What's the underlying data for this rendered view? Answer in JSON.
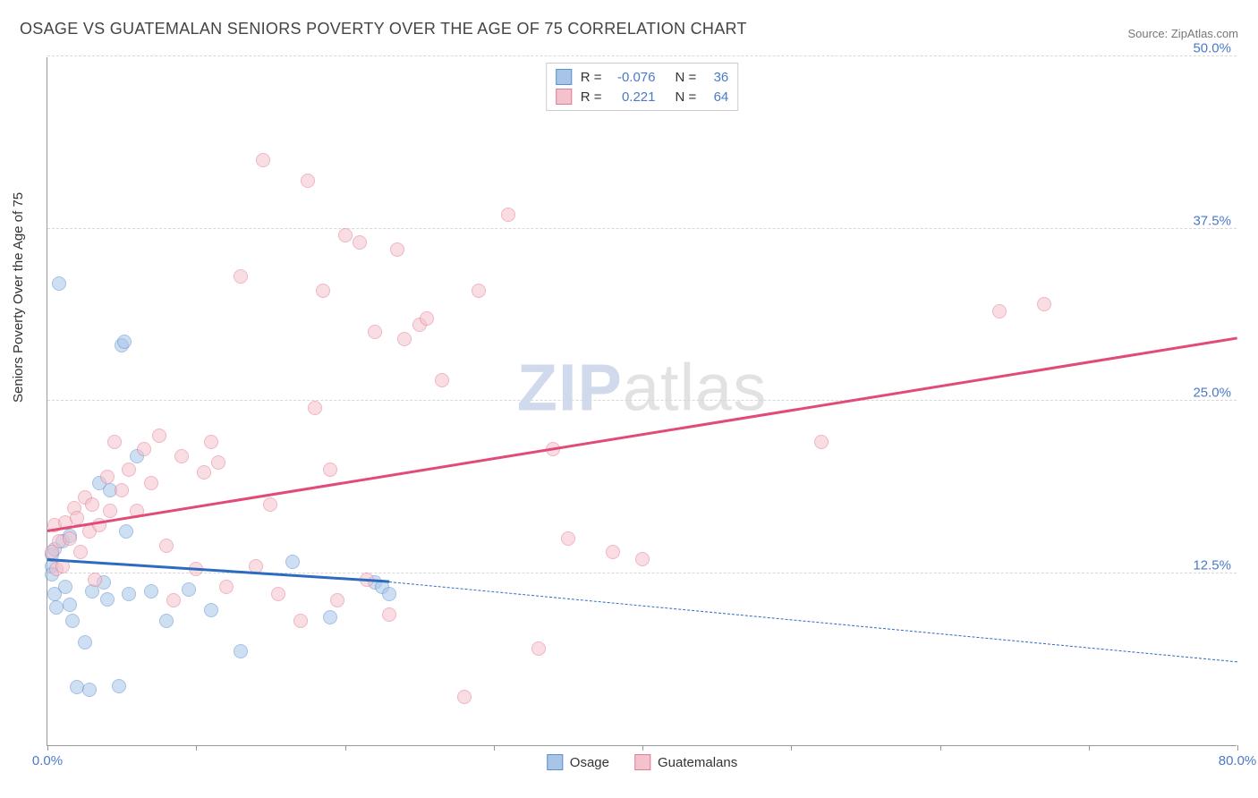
{
  "title": "OSAGE VS GUATEMALAN SENIORS POVERTY OVER THE AGE OF 75 CORRELATION CHART",
  "source": "Source: ZipAtlas.com",
  "ylabel": "Seniors Poverty Over the Age of 75",
  "watermark": {
    "part1": "ZIP",
    "part2": "atlas"
  },
  "chart": {
    "type": "scatter",
    "xlim": [
      0,
      80
    ],
    "ylim": [
      0,
      50
    ],
    "x_ticks": [
      0,
      10,
      20,
      30,
      40,
      50,
      60,
      70,
      80
    ],
    "x_tick_labels": [
      "0.0%",
      "",
      "",
      "",
      "",
      "",
      "",
      "",
      "80.0%"
    ],
    "y_gridlines": [
      12.5,
      25.0,
      37.5,
      50.0
    ],
    "y_tick_labels": [
      "12.5%",
      "25.0%",
      "37.5%",
      "50.0%"
    ],
    "background_color": "#ffffff",
    "grid_color": "#d8d8d8",
    "axis_color": "#999999",
    "tick_label_color": "#4a7ac7",
    "marker_radius": 8,
    "marker_opacity": 0.55,
    "series": [
      {
        "name": "Osage",
        "fill_color": "#a8c5e8",
        "stroke_color": "#5a8fd4",
        "line_color": "#2d6bc0",
        "r": -0.076,
        "n": 36,
        "trend": {
          "x1": 0,
          "y1": 13.4,
          "x2": 23,
          "y2": 11.8,
          "solid": true
        },
        "trend_ext": {
          "x1": 23,
          "y1": 11.8,
          "x2": 80,
          "y2": 6.0
        },
        "points": [
          [
            0.3,
            13.0
          ],
          [
            0.3,
            12.4
          ],
          [
            0.3,
            13.8
          ],
          [
            0.5,
            14.2
          ],
          [
            0.5,
            11.0
          ],
          [
            0.6,
            10.0
          ],
          [
            0.8,
            33.5
          ],
          [
            1.0,
            14.8
          ],
          [
            1.2,
            11.5
          ],
          [
            1.5,
            15.2
          ],
          [
            1.5,
            10.2
          ],
          [
            1.7,
            9.0
          ],
          [
            2.0,
            4.2
          ],
          [
            2.5,
            7.5
          ],
          [
            2.8,
            4.0
          ],
          [
            3.0,
            11.2
          ],
          [
            3.5,
            19.0
          ],
          [
            3.8,
            11.8
          ],
          [
            4.0,
            10.6
          ],
          [
            4.2,
            18.5
          ],
          [
            4.8,
            4.3
          ],
          [
            5.0,
            29.0
          ],
          [
            5.2,
            29.3
          ],
          [
            5.3,
            15.5
          ],
          [
            5.5,
            11.0
          ],
          [
            6.0,
            21.0
          ],
          [
            7.0,
            11.2
          ],
          [
            8.0,
            9.0
          ],
          [
            9.5,
            11.3
          ],
          [
            11.0,
            9.8
          ],
          [
            13.0,
            6.8
          ],
          [
            16.5,
            13.3
          ],
          [
            19.0,
            9.3
          ],
          [
            22.0,
            11.8
          ],
          [
            22.5,
            11.5
          ],
          [
            23.0,
            11.0
          ]
        ]
      },
      {
        "name": "Guatemalans",
        "fill_color": "#f4c2cc",
        "stroke_color": "#e77a95",
        "line_color": "#e04b77",
        "r": 0.221,
        "n": 64,
        "trend": {
          "x1": 0,
          "y1": 15.5,
          "x2": 80,
          "y2": 29.5,
          "solid": true
        },
        "points": [
          [
            0.3,
            14.0
          ],
          [
            0.5,
            16.0
          ],
          [
            0.6,
            12.8
          ],
          [
            0.8,
            14.8
          ],
          [
            1.0,
            13.0
          ],
          [
            1.2,
            16.2
          ],
          [
            1.5,
            15.0
          ],
          [
            1.8,
            17.2
          ],
          [
            2.0,
            16.5
          ],
          [
            2.2,
            14.0
          ],
          [
            2.5,
            18.0
          ],
          [
            2.8,
            15.5
          ],
          [
            3.0,
            17.5
          ],
          [
            3.2,
            12.0
          ],
          [
            3.5,
            16.0
          ],
          [
            4.0,
            19.5
          ],
          [
            4.2,
            17.0
          ],
          [
            4.5,
            22.0
          ],
          [
            5.0,
            18.5
          ],
          [
            5.5,
            20.0
          ],
          [
            6.0,
            17.0
          ],
          [
            6.5,
            21.5
          ],
          [
            7.0,
            19.0
          ],
          [
            7.5,
            22.5
          ],
          [
            8.0,
            14.5
          ],
          [
            8.5,
            10.5
          ],
          [
            9.0,
            21.0
          ],
          [
            10.0,
            12.8
          ],
          [
            10.5,
            19.8
          ],
          [
            11.0,
            22.0
          ],
          [
            11.5,
            20.5
          ],
          [
            12.0,
            11.5
          ],
          [
            13.0,
            34.0
          ],
          [
            14.0,
            13.0
          ],
          [
            14.5,
            42.5
          ],
          [
            15.0,
            17.5
          ],
          [
            15.5,
            11.0
          ],
          [
            17.0,
            9.0
          ],
          [
            17.5,
            41.0
          ],
          [
            18.0,
            24.5
          ],
          [
            18.5,
            33.0
          ],
          [
            19.0,
            20.0
          ],
          [
            19.5,
            10.5
          ],
          [
            20.0,
            37.0
          ],
          [
            21.0,
            36.5
          ],
          [
            21.5,
            12.0
          ],
          [
            22.0,
            30.0
          ],
          [
            23.0,
            9.5
          ],
          [
            23.5,
            36.0
          ],
          [
            24.0,
            29.5
          ],
          [
            25.0,
            30.5
          ],
          [
            25.5,
            31.0
          ],
          [
            26.5,
            26.5
          ],
          [
            28.0,
            3.5
          ],
          [
            29.0,
            33.0
          ],
          [
            31.0,
            38.5
          ],
          [
            33.0,
            7.0
          ],
          [
            34.0,
            21.5
          ],
          [
            35.0,
            15.0
          ],
          [
            38.0,
            14.0
          ],
          [
            40.0,
            13.5
          ],
          [
            52.0,
            22.0
          ],
          [
            64.0,
            31.5
          ],
          [
            67.0,
            32.0
          ]
        ]
      }
    ],
    "bottom_legend": [
      {
        "label": "Osage",
        "fill": "#a8c5e8",
        "stroke": "#5a8fd4"
      },
      {
        "label": "Guatemalans",
        "fill": "#f4c2cc",
        "stroke": "#e77a95"
      }
    ],
    "stats_legend_labels": {
      "r_prefix": "R =",
      "n_prefix": "N ="
    }
  }
}
